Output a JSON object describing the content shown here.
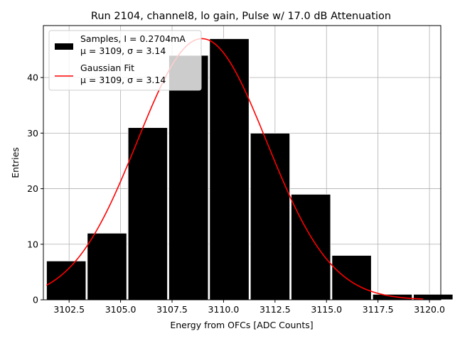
{
  "chart_data": {
    "type": "bar",
    "title": "Run 2104, channel8, lo gain, Pulse w/ 17.0 dB Attenuation",
    "xlabel": "Energy from OFCs [ADC Counts]",
    "ylabel": "Entries",
    "xlim": [
      3101.25,
      3120.55
    ],
    "ylim": [
      0,
      49.35
    ],
    "xticks": [
      3102.5,
      3105.0,
      3107.5,
      3110.0,
      3112.5,
      3115.0,
      3117.5,
      3120.0
    ],
    "xtick_labels": [
      "3102.5",
      "3105.0",
      "3107.5",
      "3110.0",
      "3112.5",
      "3115.0",
      "3117.5",
      "3120.0"
    ],
    "yticks": [
      0,
      10,
      20,
      30,
      40
    ],
    "ytick_labels": [
      "0",
      "10",
      "20",
      "30",
      "40"
    ],
    "grid": true,
    "legend_placement": "upper-left",
    "histogram": {
      "bin_edges": [
        3101.4,
        3103.38,
        3105.36,
        3107.34,
        3109.32,
        3111.3,
        3113.28,
        3115.26,
        3117.24,
        3119.22,
        3121.2
      ],
      "bin_width_fraction": 0.97,
      "counts": [
        7,
        12,
        31,
        44,
        47,
        30,
        19,
        8,
        1,
        1
      ],
      "color": "#000000",
      "edgecolor": "#ffffff"
    },
    "series": [
      {
        "kind": "histogram",
        "legend_line1": "Samples, I = 0.2704mA",
        "legend_line2": "μ = 3109, σ = 3.14",
        "color": "#000000"
      },
      {
        "kind": "gaussian-fit",
        "legend_line1": "Gaussian Fit",
        "legend_line2": "μ = 3109, σ = 3.14",
        "color": "#ff0000",
        "mu": 3108.95,
        "sigma": 3.14,
        "amplitude": 47,
        "x_range": [
          3101.4,
          3119.7
        ]
      }
    ]
  }
}
